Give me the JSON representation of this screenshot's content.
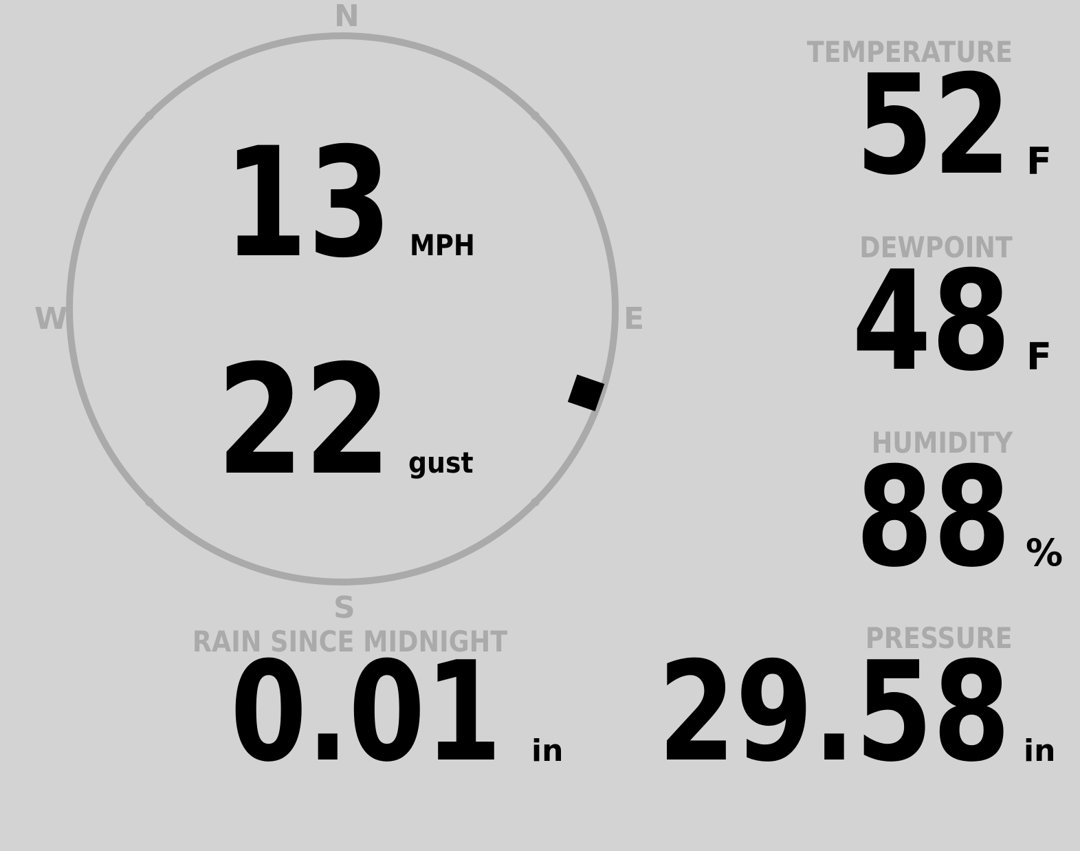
{
  "colors": {
    "background": "#d3d3d3",
    "label": "#aaaaaa",
    "value": "#000000",
    "compass_ring": "#aaaaaa",
    "wind_marker": "#000000"
  },
  "compass": {
    "north": "N",
    "east": "E",
    "south": "S",
    "west": "W",
    "wind_direction_deg": 109
  },
  "wind": {
    "speed": "13",
    "speed_unit": "MPH",
    "gust": "22",
    "gust_label": "gust"
  },
  "temperature": {
    "label": "TEMPERATURE",
    "value": "52",
    "unit": "F"
  },
  "dewpoint": {
    "label": "DEWPOINT",
    "value": "48",
    "unit": "F"
  },
  "humidity": {
    "label": "HUMIDITY",
    "value": "88",
    "unit": "%"
  },
  "rain": {
    "label": "RAIN SINCE MIDNIGHT",
    "value": "0.01",
    "unit": "in"
  },
  "pressure": {
    "label": "PRESSURE",
    "value": "29.58",
    "unit": "in"
  }
}
